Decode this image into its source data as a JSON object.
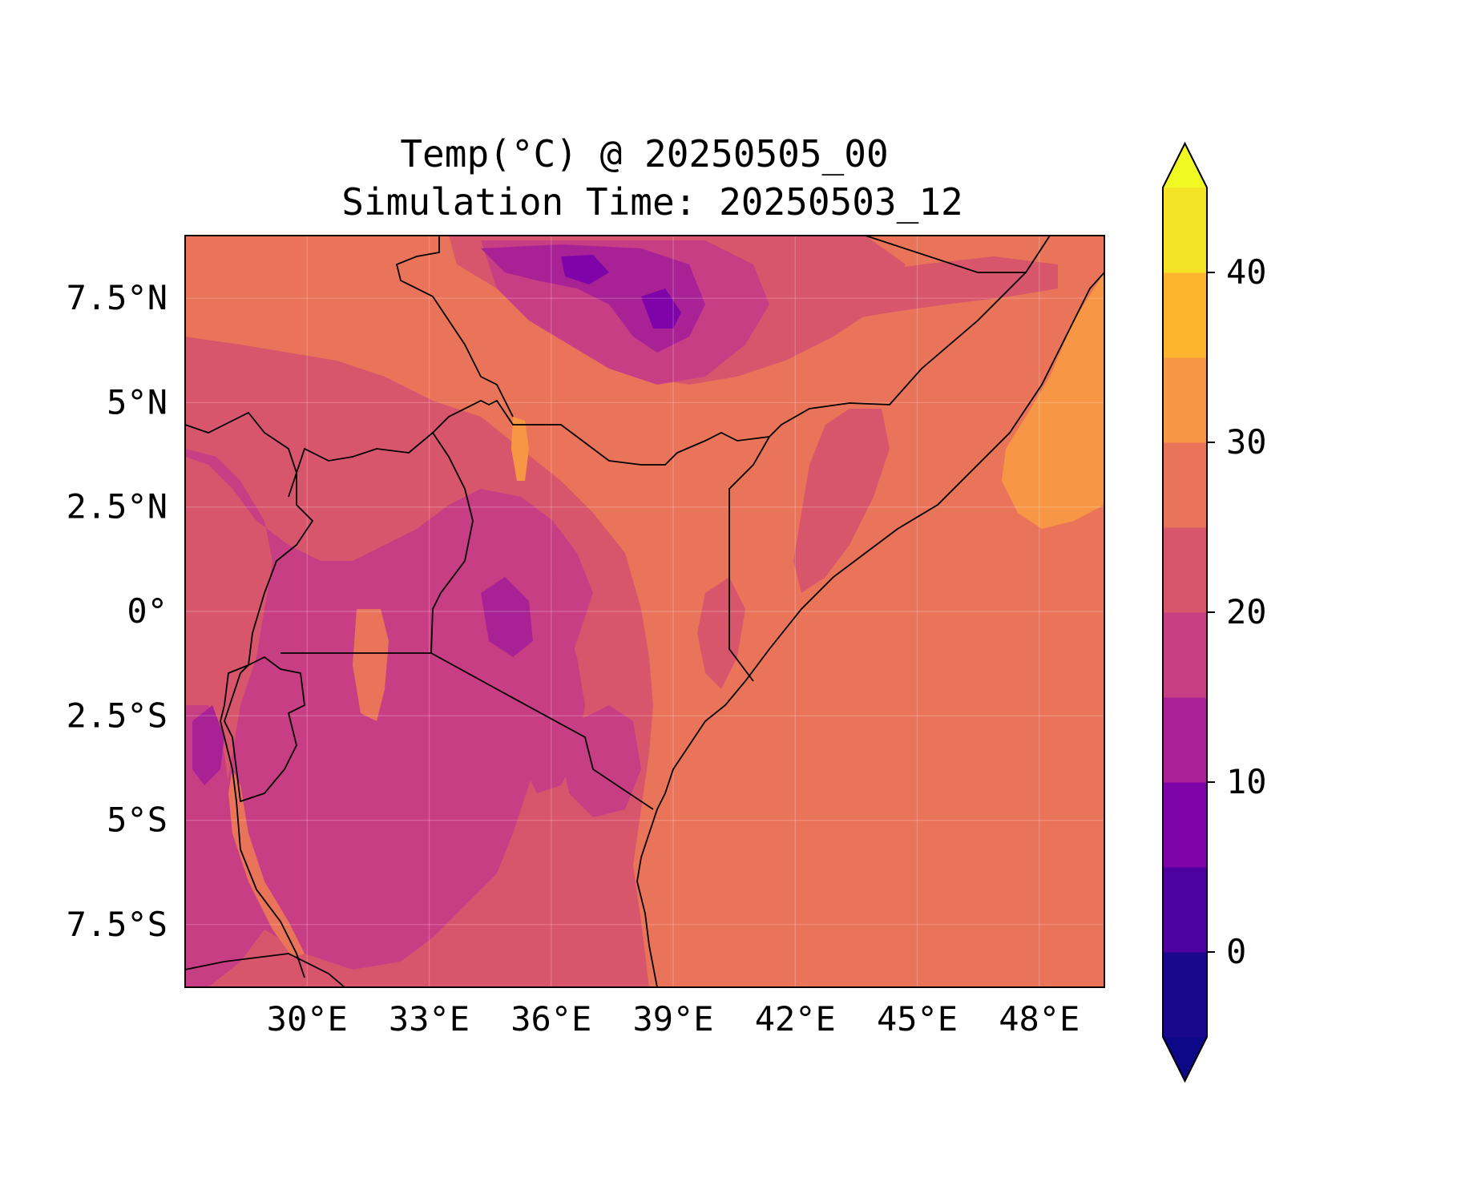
{
  "title": {
    "line1": "Temp(°C) @ 20250505_00",
    "line2": "Simulation Time: 20250503_12"
  },
  "map": {
    "lon_range": [
      27.0,
      49.6
    ],
    "lat_range": [
      -9.0,
      9.0
    ],
    "x_ticks": [
      {
        "lon": 30,
        "label": "30°E"
      },
      {
        "lon": 33,
        "label": "33°E"
      },
      {
        "lon": 36,
        "label": "36°E"
      },
      {
        "lon": 39,
        "label": "39°E"
      },
      {
        "lon": 42,
        "label": "42°E"
      },
      {
        "lon": 45,
        "label": "45°E"
      },
      {
        "lon": 48,
        "label": "48°E"
      }
    ],
    "y_ticks": [
      {
        "lat": 7.5,
        "label": "7.5°N"
      },
      {
        "lat": 5,
        "label": "5°N"
      },
      {
        "lat": 2.5,
        "label": "2.5°N"
      },
      {
        "lat": 0,
        "label": "0°"
      },
      {
        "lat": -2.5,
        "label": "2.5°S"
      },
      {
        "lat": -5,
        "label": "5°S"
      },
      {
        "lat": -7.5,
        "label": "7.5°S"
      }
    ],
    "gridlines": true
  },
  "colorbar": {
    "levels": [
      -5,
      0,
      5,
      10,
      15,
      20,
      25,
      30,
      35,
      40,
      45
    ],
    "colors": [
      "#1a078e",
      "#4d02a0",
      "#7e03a8",
      "#a82296",
      "#c83e84",
      "#d8566c",
      "#ea7459",
      "#f79645",
      "#fdb42f",
      "#f2e325"
    ],
    "under_color": "#0d0887",
    "over_color": "#f0f921",
    "ticks": [
      {
        "value": 0,
        "label": "0"
      },
      {
        "value": 10,
        "label": "10"
      },
      {
        "value": 20,
        "label": "20"
      },
      {
        "value": 30,
        "label": "30"
      },
      {
        "value": 40,
        "label": "40"
      }
    ]
  }
}
